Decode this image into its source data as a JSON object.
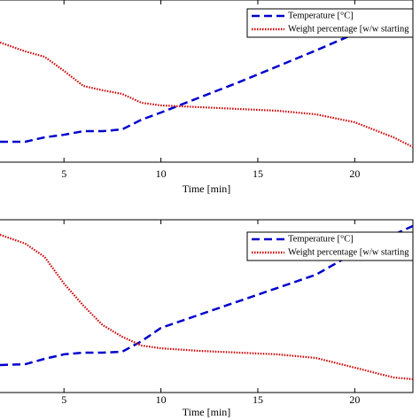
{
  "chart_data": [
    {
      "type": "line",
      "xlabel": "Time [min]",
      "xlim": [
        1.7,
        23
      ],
      "xticks": [
        5,
        10,
        15,
        20
      ],
      "ylim": [
        0,
        100
      ],
      "x": [
        1.7,
        3,
        4,
        5,
        6,
        7,
        8,
        9,
        10,
        12,
        14,
        16,
        18,
        20,
        22,
        23
      ],
      "series": [
        {
          "name": "Temperature [°C]",
          "color": "#0000cc",
          "style": "dashed",
          "values": [
            12.6,
            12.6,
            15.3,
            16.9,
            19.1,
            19.1,
            20.2,
            26.2,
            30.6,
            39.9,
            49.2,
            59.0,
            68.9,
            79.2,
            89.1,
            94
          ]
        },
        {
          "name": "Weight percentage [w/w starting",
          "color": "#cc0000",
          "style": "dotted",
          "values": [
            73.8,
            68.3,
            65.0,
            56.3,
            47.0,
            44.3,
            42.1,
            36.6,
            35.0,
            33.9,
            32.8,
            31.7,
            29.5,
            24.6,
            15.3,
            9.3
          ]
        }
      ],
      "legend": "top-right"
    },
    {
      "type": "line",
      "xlabel": "Time [min]",
      "xlim": [
        1.7,
        23
      ],
      "xticks": [
        5,
        10,
        15,
        20
      ],
      "ylim": [
        0,
        100
      ],
      "x": [
        1.7,
        3,
        4,
        5,
        6,
        7,
        8,
        9,
        10,
        12,
        14,
        16,
        18,
        20,
        22,
        23
      ],
      "series": [
        {
          "name": "Temperature [°C]",
          "color": "#0000cc",
          "style": "dashed",
          "values": [
            15.9,
            16.4,
            19.5,
            22.1,
            23.1,
            23.1,
            23.6,
            29.7,
            37.4,
            45.1,
            52.8,
            60.5,
            68.2,
            81.0,
            91.3,
            96.4
          ]
        },
        {
          "name": "Weight percentage [w/w starting",
          "color": "#cc0000",
          "style": "dotted",
          "values": [
            91.3,
            86.2,
            78.5,
            63.1,
            50.3,
            39.0,
            32.3,
            27.2,
            25.6,
            24.1,
            23.1,
            22.1,
            20.0,
            14.4,
            8.7,
            7.7
          ]
        }
      ],
      "legend": "top-right"
    }
  ]
}
